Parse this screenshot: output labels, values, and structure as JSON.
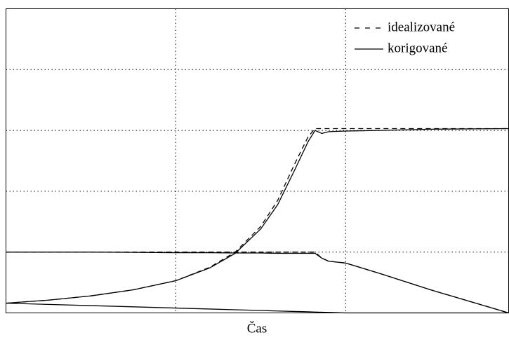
{
  "chart_data": {
    "type": "line",
    "xlabel": "Čas",
    "x": [
      0,
      0.25,
      0.5,
      0.75,
      1.0,
      1.2,
      1.35,
      1.5,
      1.6,
      1.7,
      1.78,
      1.82,
      1.86,
      1.9,
      2.0,
      2.2,
      2.5,
      2.96
    ],
    "series": [
      {
        "name": "idealizované",
        "color": "#000000",
        "dashed": true,
        "values": [
          0.16,
          0.21,
          0.28,
          0.38,
          0.53,
          0.75,
          1.0,
          1.42,
          1.85,
          2.45,
          2.9,
          3.03,
          3.03,
          3.03,
          3.03,
          3.03,
          3.03,
          3.03
        ]
      },
      {
        "name": "korigované",
        "color": "#000000",
        "dashed": false,
        "values": [
          0.16,
          0.21,
          0.28,
          0.38,
          0.53,
          0.74,
          0.98,
          1.38,
          1.78,
          2.35,
          2.82,
          3.0,
          2.95,
          2.98,
          2.99,
          3.0,
          3.02,
          3.03
        ]
      },
      {
        "color": "#000000",
        "dashed": true,
        "values": [
          1.0,
          1.0,
          1.0,
          1.0,
          1.0,
          1.0,
          1.0,
          1.0,
          1.0,
          1.0,
          1.0,
          1.0,
          0.9,
          0.85,
          0.82,
          0.65,
          0.38,
          0.0
        ]
      },
      {
        "color": "#000000",
        "dashed": false,
        "values": [
          1.0,
          1.0,
          1.0,
          0.995,
          0.99,
          0.99,
          0.985,
          0.985,
          0.98,
          0.98,
          0.98,
          0.98,
          0.9,
          0.85,
          0.82,
          0.65,
          0.38,
          0.0
        ]
      },
      {
        "color": "#000000",
        "dashed": false,
        "values": [
          0.16,
          0.14,
          0.12,
          0.1,
          0.08,
          0.064,
          0.052,
          0.04,
          0.032,
          0.024,
          0.018,
          0.014,
          0.011,
          0.008,
          0.0,
          0.0,
          0.0,
          0.0
        ]
      }
    ],
    "xlim": [
      0,
      2.96
    ],
    "ylim": [
      0,
      5.0
    ],
    "xticks": [
      1,
      2
    ],
    "yticks": [
      1,
      2,
      3,
      4
    ],
    "grid": true,
    "legend": "upper right"
  }
}
